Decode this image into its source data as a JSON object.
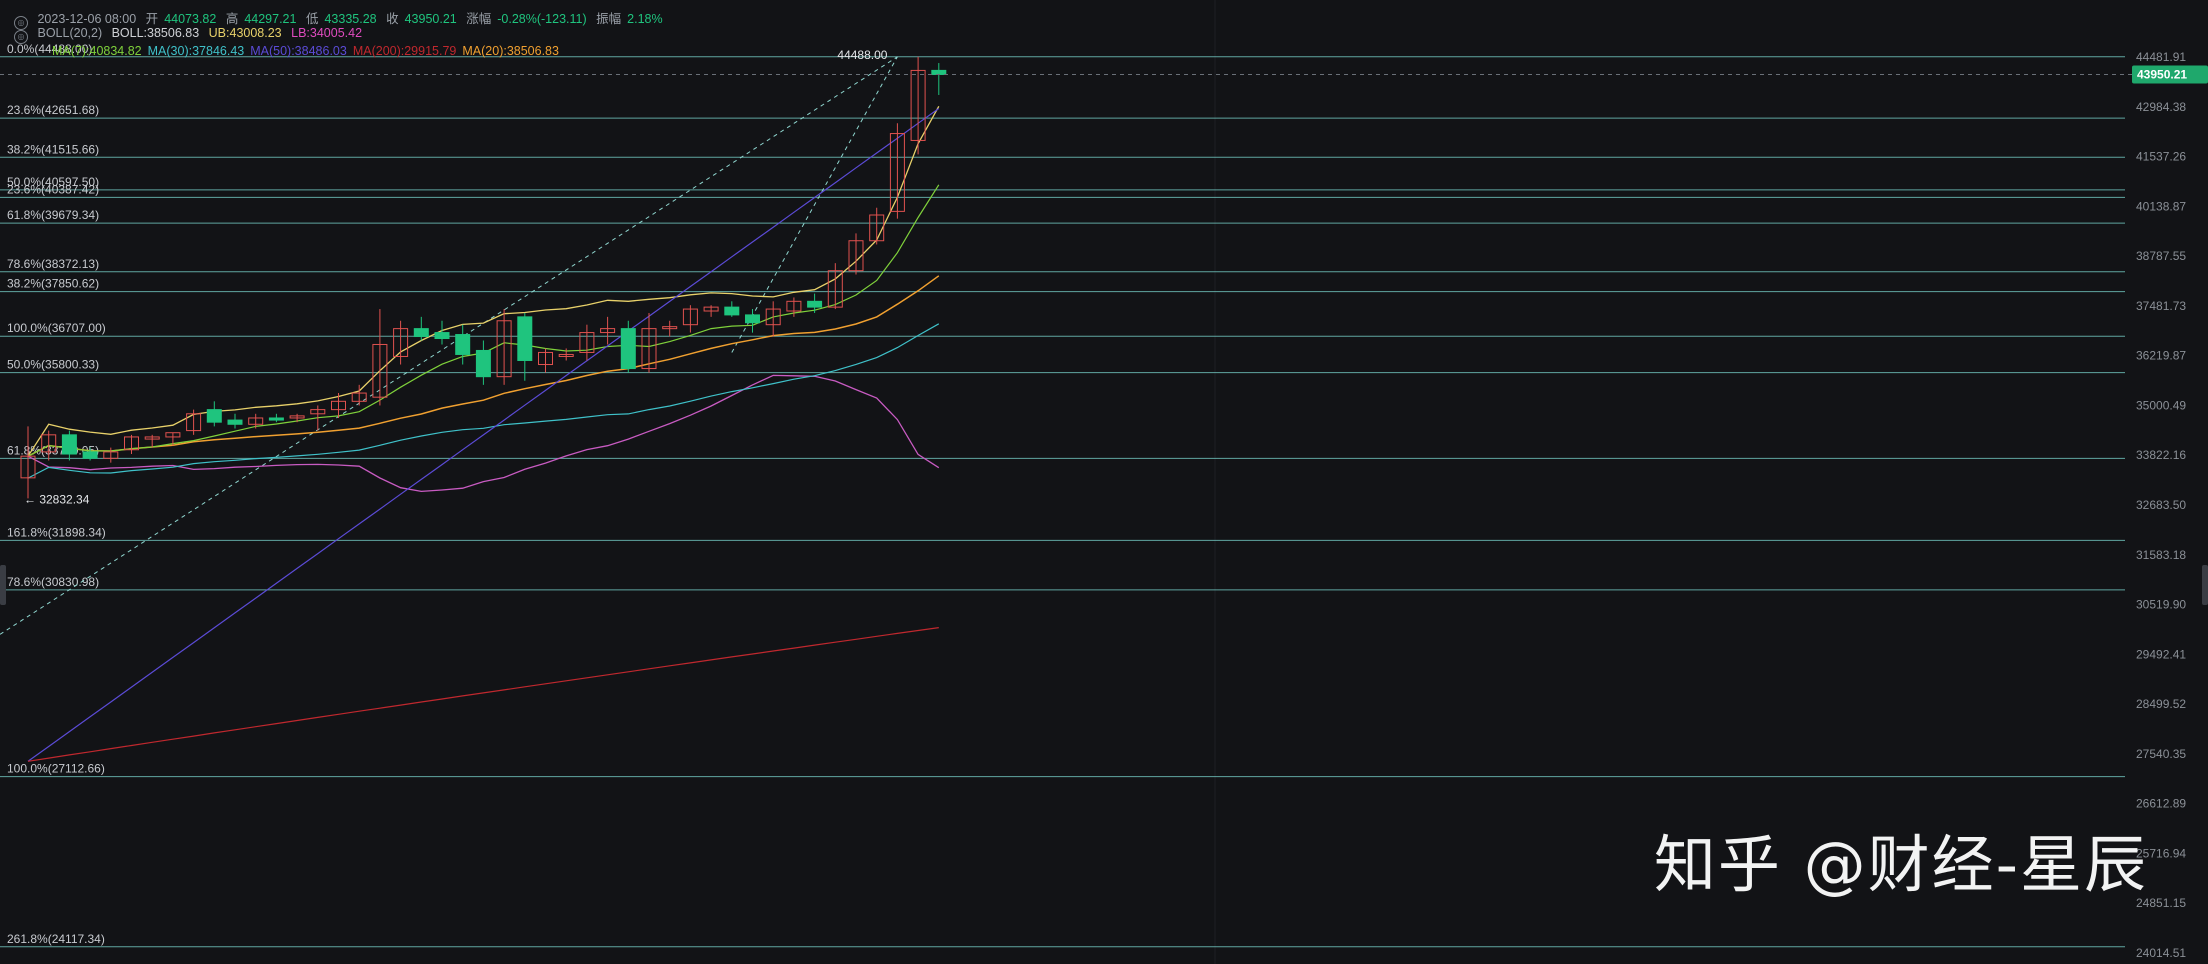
{
  "header": {
    "datetime": "2023-12-06 08:00",
    "open_label": "开",
    "open": "44073.82",
    "high_label": "高",
    "high": "44297.21",
    "low_label": "低",
    "low": "43335.28",
    "close_label": "收",
    "close": "43950.21",
    "change_label": "涨幅",
    "change": "-0.28%(-123.11)",
    "amplitude_label": "振幅",
    "amplitude": "2.18%"
  },
  "boll": {
    "name": "BOLL(20,2)",
    "boll_value": "BOLL:38506.83",
    "ub_value": "UB:43008.23",
    "lb_value": "LB:34005.42"
  },
  "ma_legend": [
    {
      "text": "MA(7):40834.82",
      "color": "#7fd13b"
    },
    {
      "text": "MA(30):37846.43",
      "color": "#3fc1c9"
    },
    {
      "text": "MA(50):38486.03",
      "color": "#5b4bd6"
    },
    {
      "text": "MA(200):29915.79",
      "color": "#c0282e"
    },
    {
      "text": "MA(20):38506.83",
      "color": "#f0a030"
    }
  ],
  "price_axis": [
    "44481.91",
    "43950.21",
    "42984.38",
    "41537.26",
    "40138.87",
    "38787.55",
    "37481.73",
    "36219.87",
    "35000.49",
    "33822.16",
    "32683.50",
    "31583.18",
    "30519.90",
    "29492.41",
    "28499.52",
    "27540.35",
    "26612.89",
    "25716.94",
    "24851.15",
    "24014.51"
  ],
  "current_price_tag": "43950.21",
  "high_marker": "44488.00",
  "low_marker": "32832.34",
  "fib_labels": [
    "0.0%(44488.00)",
    "23.6%(42651.68)",
    "38.2%(41515.66)",
    "50.0%(40597.50)",
    "23.6%(40387.42)",
    "61.8%(39679.34)",
    "78.6%(38372.13)",
    "38.2%(37850.62)",
    "100.0%(36707.00)",
    "50.0%(35800.33)",
    "61.8%(33750.05)",
    "161.8%(31898.34)",
    "78.6%(30830.98)",
    "100.0%(27112.66)",
    "261.8%(24117.34)"
  ],
  "watermark": "知乎 @财经-星辰",
  "colors": {
    "background": "#121316",
    "up": "#e0524f",
    "down": "#1fc47e",
    "fib_line": "#7ad7d0",
    "boll_ub": "#e04bbf",
    "boll_lb": "#c85bc2",
    "ma7": "#7fd13b",
    "ma20": "#f0a030",
    "ma30": "#3fc1c9",
    "ma50": "#5b4bd6",
    "ma200": "#c0282e",
    "mid": "#e8d16a"
  },
  "chart_data": {
    "type": "candlestick",
    "y_axis_scale": "log",
    "ylim": [
      24014.51,
      44481.91
    ],
    "candles": [
      {
        "o": 33300,
        "h": 34500,
        "l": 32832.34,
        "c": 33800
      },
      {
        "o": 33900,
        "h": 34400,
        "l": 33700,
        "c": 34300
      },
      {
        "o": 34300,
        "h": 34400,
        "l": 33700,
        "c": 33850
      },
      {
        "o": 33900,
        "h": 34000,
        "l": 33700,
        "c": 33750
      },
      {
        "o": 33750,
        "h": 34000,
        "l": 33650,
        "c": 33900
      },
      {
        "o": 33950,
        "h": 34300,
        "l": 33850,
        "c": 34250
      },
      {
        "o": 34200,
        "h": 34300,
        "l": 34000,
        "c": 34250
      },
      {
        "o": 34250,
        "h": 34350,
        "l": 34050,
        "c": 34350
      },
      {
        "o": 34400,
        "h": 34900,
        "l": 34300,
        "c": 34800
      },
      {
        "o": 34900,
        "h": 35100,
        "l": 34500,
        "c": 34600
      },
      {
        "o": 34650,
        "h": 34800,
        "l": 34450,
        "c": 34550
      },
      {
        "o": 34550,
        "h": 34800,
        "l": 34450,
        "c": 34700
      },
      {
        "o": 34700,
        "h": 34800,
        "l": 34600,
        "c": 34650
      },
      {
        "o": 34700,
        "h": 34800,
        "l": 34600,
        "c": 34750
      },
      {
        "o": 34800,
        "h": 35000,
        "l": 34400,
        "c": 34900
      },
      {
        "o": 34900,
        "h": 35300,
        "l": 34700,
        "c": 35100
      },
      {
        "o": 35100,
        "h": 35500,
        "l": 35000,
        "c": 35300
      },
      {
        "o": 35200,
        "h": 37400,
        "l": 35000,
        "c": 36500
      },
      {
        "o": 36200,
        "h": 37100,
        "l": 36000,
        "c": 36900
      },
      {
        "o": 36900,
        "h": 37200,
        "l": 36600,
        "c": 36700
      },
      {
        "o": 36800,
        "h": 37100,
        "l": 36500,
        "c": 36650
      },
      {
        "o": 36750,
        "h": 37000,
        "l": 36000,
        "c": 36250
      },
      {
        "o": 36350,
        "h": 36600,
        "l": 35500,
        "c": 35700
      },
      {
        "o": 35700,
        "h": 37400,
        "l": 35500,
        "c": 37100
      },
      {
        "o": 37200,
        "h": 37300,
        "l": 35600,
        "c": 36100
      },
      {
        "o": 36000,
        "h": 36400,
        "l": 35800,
        "c": 36300
      },
      {
        "o": 36200,
        "h": 36400,
        "l": 36100,
        "c": 36250
      },
      {
        "o": 36300,
        "h": 37000,
        "l": 36100,
        "c": 36800
      },
      {
        "o": 36800,
        "h": 37200,
        "l": 36500,
        "c": 36900
      },
      {
        "o": 36900,
        "h": 37100,
        "l": 35800,
        "c": 35900
      },
      {
        "o": 35900,
        "h": 37300,
        "l": 35800,
        "c": 36900
      },
      {
        "o": 36900,
        "h": 37100,
        "l": 36700,
        "c": 36950
      },
      {
        "o": 37000,
        "h": 37500,
        "l": 36800,
        "c": 37400
      },
      {
        "o": 37350,
        "h": 37500,
        "l": 37200,
        "c": 37450
      },
      {
        "o": 37450,
        "h": 37600,
        "l": 37200,
        "c": 37250
      },
      {
        "o": 37250,
        "h": 37400,
        "l": 36800,
        "c": 37050
      },
      {
        "o": 37000,
        "h": 37600,
        "l": 36700,
        "c": 37400
      },
      {
        "o": 37350,
        "h": 37700,
        "l": 37200,
        "c": 37600
      },
      {
        "o": 37600,
        "h": 37800,
        "l": 37300,
        "c": 37450
      },
      {
        "o": 37450,
        "h": 38600,
        "l": 37400,
        "c": 38400
      },
      {
        "o": 38400,
        "h": 39400,
        "l": 38300,
        "c": 39200
      },
      {
        "o": 39200,
        "h": 40100,
        "l": 39100,
        "c": 39900
      },
      {
        "o": 40000,
        "h": 42500,
        "l": 39800,
        "c": 42200
      },
      {
        "o": 42000,
        "h": 44488,
        "l": 41600,
        "c": 44073
      },
      {
        "o": 44073.82,
        "h": 44297.21,
        "l": 43335.28,
        "c": 43950.21
      }
    ]
  }
}
